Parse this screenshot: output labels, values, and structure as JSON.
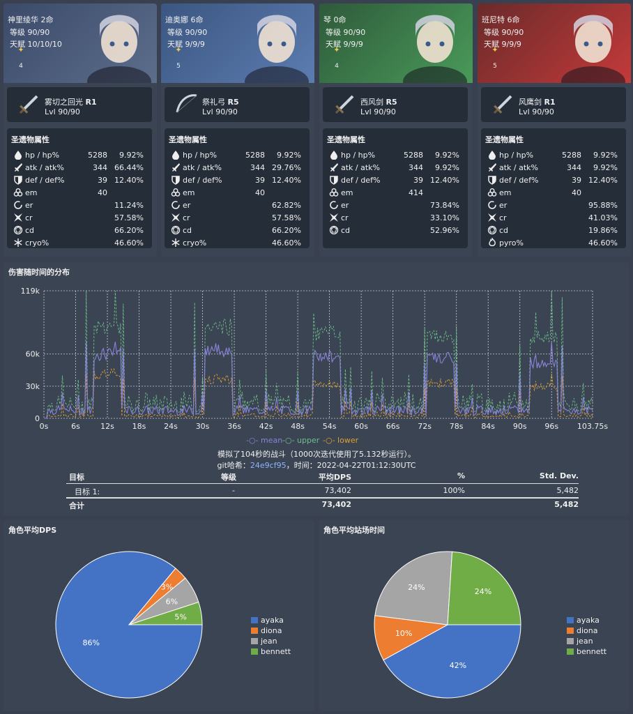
{
  "characters": [
    {
      "name": "神里绫华 2命",
      "level": "等级 90/90",
      "talent": "天赋 10/10/10",
      "rarity": "4",
      "theme": [
        "#3a4a68",
        "#5d6d8c"
      ],
      "weapon": {
        "name": "雾切之回光",
        "refine": "R1",
        "level": "Lvl 90/90",
        "icon": "sword-icon"
      },
      "stats": [
        [
          "hp / hp%",
          "5288",
          "9.92%",
          "hp-icon"
        ],
        [
          "atk / atk%",
          "344",
          "66.44%",
          "atk-icon"
        ],
        [
          "def / def%",
          "39",
          "12.40%",
          "def-icon"
        ],
        [
          "em",
          "40",
          "",
          "em-icon"
        ],
        [
          "er",
          "",
          "11.24%",
          "er-icon"
        ],
        [
          "cr",
          "",
          "57.58%",
          "cr-icon"
        ],
        [
          "cd",
          "",
          "66.20%",
          "cd-icon"
        ],
        [
          "cryo%",
          "",
          "46.60%",
          "cryo-icon"
        ]
      ]
    },
    {
      "name": "迪奥娜 6命",
      "level": "等级 90/90",
      "talent": "天赋 9/9/9",
      "rarity": "5",
      "theme": [
        "#3b5681",
        "#5c7cb0"
      ],
      "weapon": {
        "name": "祭礼弓",
        "refine": "R5",
        "level": "Lvl 90/90",
        "icon": "bow-icon"
      },
      "stats": [
        [
          "hp / hp%",
          "5288",
          "9.92%",
          "hp-icon"
        ],
        [
          "atk / atk%",
          "344",
          "29.76%",
          "atk-icon"
        ],
        [
          "def / def%",
          "39",
          "12.40%",
          "def-icon"
        ],
        [
          "em",
          "40",
          "",
          "em-icon"
        ],
        [
          "er",
          "",
          "62.82%",
          "er-icon"
        ],
        [
          "cr",
          "",
          "57.58%",
          "cr-icon"
        ],
        [
          "cd",
          "",
          "66.20%",
          "cd-icon"
        ],
        [
          "cryo%",
          "",
          "46.60%",
          "cryo-icon"
        ]
      ]
    },
    {
      "name": "琴 0命",
      "level": "等级 90/90",
      "talent": "天赋 9/9/9",
      "rarity": "4",
      "theme": [
        "#2e5a3a",
        "#4a9a5a"
      ],
      "weapon": {
        "name": "西风剑",
        "refine": "R5",
        "level": "Lvl 90/90",
        "icon": "sword-icon"
      },
      "stats": [
        [
          "hp / hp%",
          "5288",
          "9.92%",
          "hp-icon"
        ],
        [
          "atk / atk%",
          "344",
          "9.92%",
          "atk-icon"
        ],
        [
          "def / def%",
          "39",
          "12.40%",
          "def-icon"
        ],
        [
          "em",
          "414",
          "",
          "em-icon"
        ],
        [
          "er",
          "",
          "73.84%",
          "er-icon"
        ],
        [
          "cr",
          "",
          "33.10%",
          "cr-icon"
        ],
        [
          "cd",
          "",
          "52.96%",
          "cd-icon"
        ]
      ]
    },
    {
      "name": "班尼特 6命",
      "level": "等级 90/90",
      "talent": "天赋 9/9/9",
      "rarity": "5",
      "theme": [
        "#6a2a2a",
        "#c43a3a"
      ],
      "weapon": {
        "name": "风鹰剑",
        "refine": "R1",
        "level": "Lvl 90/90",
        "icon": "sword-icon"
      },
      "stats": [
        [
          "hp / hp%",
          "5288",
          "9.92%",
          "hp-icon"
        ],
        [
          "atk / atk%",
          "344",
          "9.92%",
          "atk-icon"
        ],
        [
          "def / def%",
          "39",
          "12.40%",
          "def-icon"
        ],
        [
          "em",
          "40",
          "",
          "em-icon"
        ],
        [
          "er",
          "",
          "95.88%",
          "er-icon"
        ],
        [
          "cr",
          "",
          "41.03%",
          "cr-icon"
        ],
        [
          "cd",
          "",
          "19.86%",
          "cd-icon"
        ],
        [
          "pyro%",
          "",
          "46.60%",
          "pyro-icon"
        ]
      ]
    }
  ],
  "artifact_title": "圣遗物属性",
  "damage_panel": {
    "title": "伤害随时间的分布",
    "legend": [
      "mean",
      "upper",
      "lower"
    ],
    "sim_text": "模拟了104秒的战斗（1000次迭代使用了5.132秒运行）。",
    "git_label": "git哈希：",
    "git_hash": "24e9cf95",
    "time_text": "，时间：2022-04-22T01:12:30UTC",
    "table": {
      "headers": [
        "目标",
        "等级",
        "平均DPS",
        "%",
        "Std. Dev."
      ],
      "rows": [
        [
          "目标 1:",
          "-",
          "73,402",
          "100%",
          "5,482"
        ]
      ],
      "total": [
        "合计",
        "",
        "73,402",
        "",
        "5,482"
      ]
    }
  },
  "chart_data": [
    {
      "type": "line",
      "title": "伤害随时间的分布",
      "x_ticks": [
        "0s",
        "6s",
        "12s",
        "18s",
        "24s",
        "30s",
        "36s",
        "42s",
        "48s",
        "54s",
        "60s",
        "66s",
        "72s",
        "78s",
        "84s",
        "90s",
        "96s",
        "103.75s"
      ],
      "y_ticks": [
        "0",
        "30k",
        "60k",
        "119k"
      ],
      "ylim": [
        0,
        119000
      ],
      "xlim": [
        0,
        103.75
      ],
      "series": [
        {
          "name": "mean",
          "color": "#8a82d8"
        },
        {
          "name": "upper",
          "color": "#6fbf8a"
        },
        {
          "name": "lower",
          "color": "#e0a030"
        }
      ],
      "plateaus": [
        {
          "x0": 9.5,
          "x1": 14.5,
          "mean": 60000,
          "upper": 87000,
          "lower": 42000
        },
        {
          "x0": 30.5,
          "x1": 35.5,
          "mean": 64000,
          "upper": 86000,
          "lower": 38000
        },
        {
          "x0": 51,
          "x1": 56,
          "mean": 58000,
          "upper": 80000,
          "lower": 33000
        },
        {
          "x0": 72.5,
          "x1": 77.5,
          "mean": 56000,
          "upper": 78000,
          "lower": 34000
        },
        {
          "x0": 92,
          "x1": 97,
          "mean": 52000,
          "upper": 77000,
          "lower": 30000
        }
      ],
      "spikes": [
        [
          3.5,
          40000
        ],
        [
          6.5,
          36000
        ],
        [
          8,
          119000
        ],
        [
          13.5,
          119000
        ],
        [
          15,
          107000
        ],
        [
          28.5,
          108000
        ],
        [
          30,
          40000
        ],
        [
          37,
          36000
        ],
        [
          42,
          45000
        ],
        [
          44,
          33000
        ],
        [
          48,
          44000
        ],
        [
          51,
          98000
        ],
        [
          57,
          46000
        ],
        [
          58,
          48000
        ],
        [
          62,
          44000
        ],
        [
          64,
          38000
        ],
        [
          69,
          41000
        ],
        [
          72,
          85000
        ],
        [
          78,
          86000
        ],
        [
          81,
          32000
        ],
        [
          90,
          70000
        ],
        [
          93,
          99000
        ],
        [
          96,
          119000
        ],
        [
          98,
          113000
        ],
        [
          102,
          33000
        ]
      ]
    },
    {
      "type": "pie",
      "title": "角色平均DPS",
      "categories": [
        "ayaka",
        "diona",
        "jean",
        "bennett"
      ],
      "values": [
        86,
        3,
        6,
        5
      ],
      "labels": [
        "86%",
        "3%",
        "6%",
        "5%"
      ],
      "colors": [
        "#4472c4",
        "#ed7d31",
        "#a5a5a5",
        "#70ad47"
      ]
    },
    {
      "type": "pie",
      "title": "角色平均站场时间",
      "categories": [
        "ayaka",
        "diona",
        "jean",
        "bennett"
      ],
      "values": [
        42,
        10,
        24,
        24
      ],
      "labels": [
        "42%",
        "10%",
        "24%",
        "24%"
      ],
      "colors": [
        "#4472c4",
        "#ed7d31",
        "#a5a5a5",
        "#70ad47"
      ]
    }
  ]
}
